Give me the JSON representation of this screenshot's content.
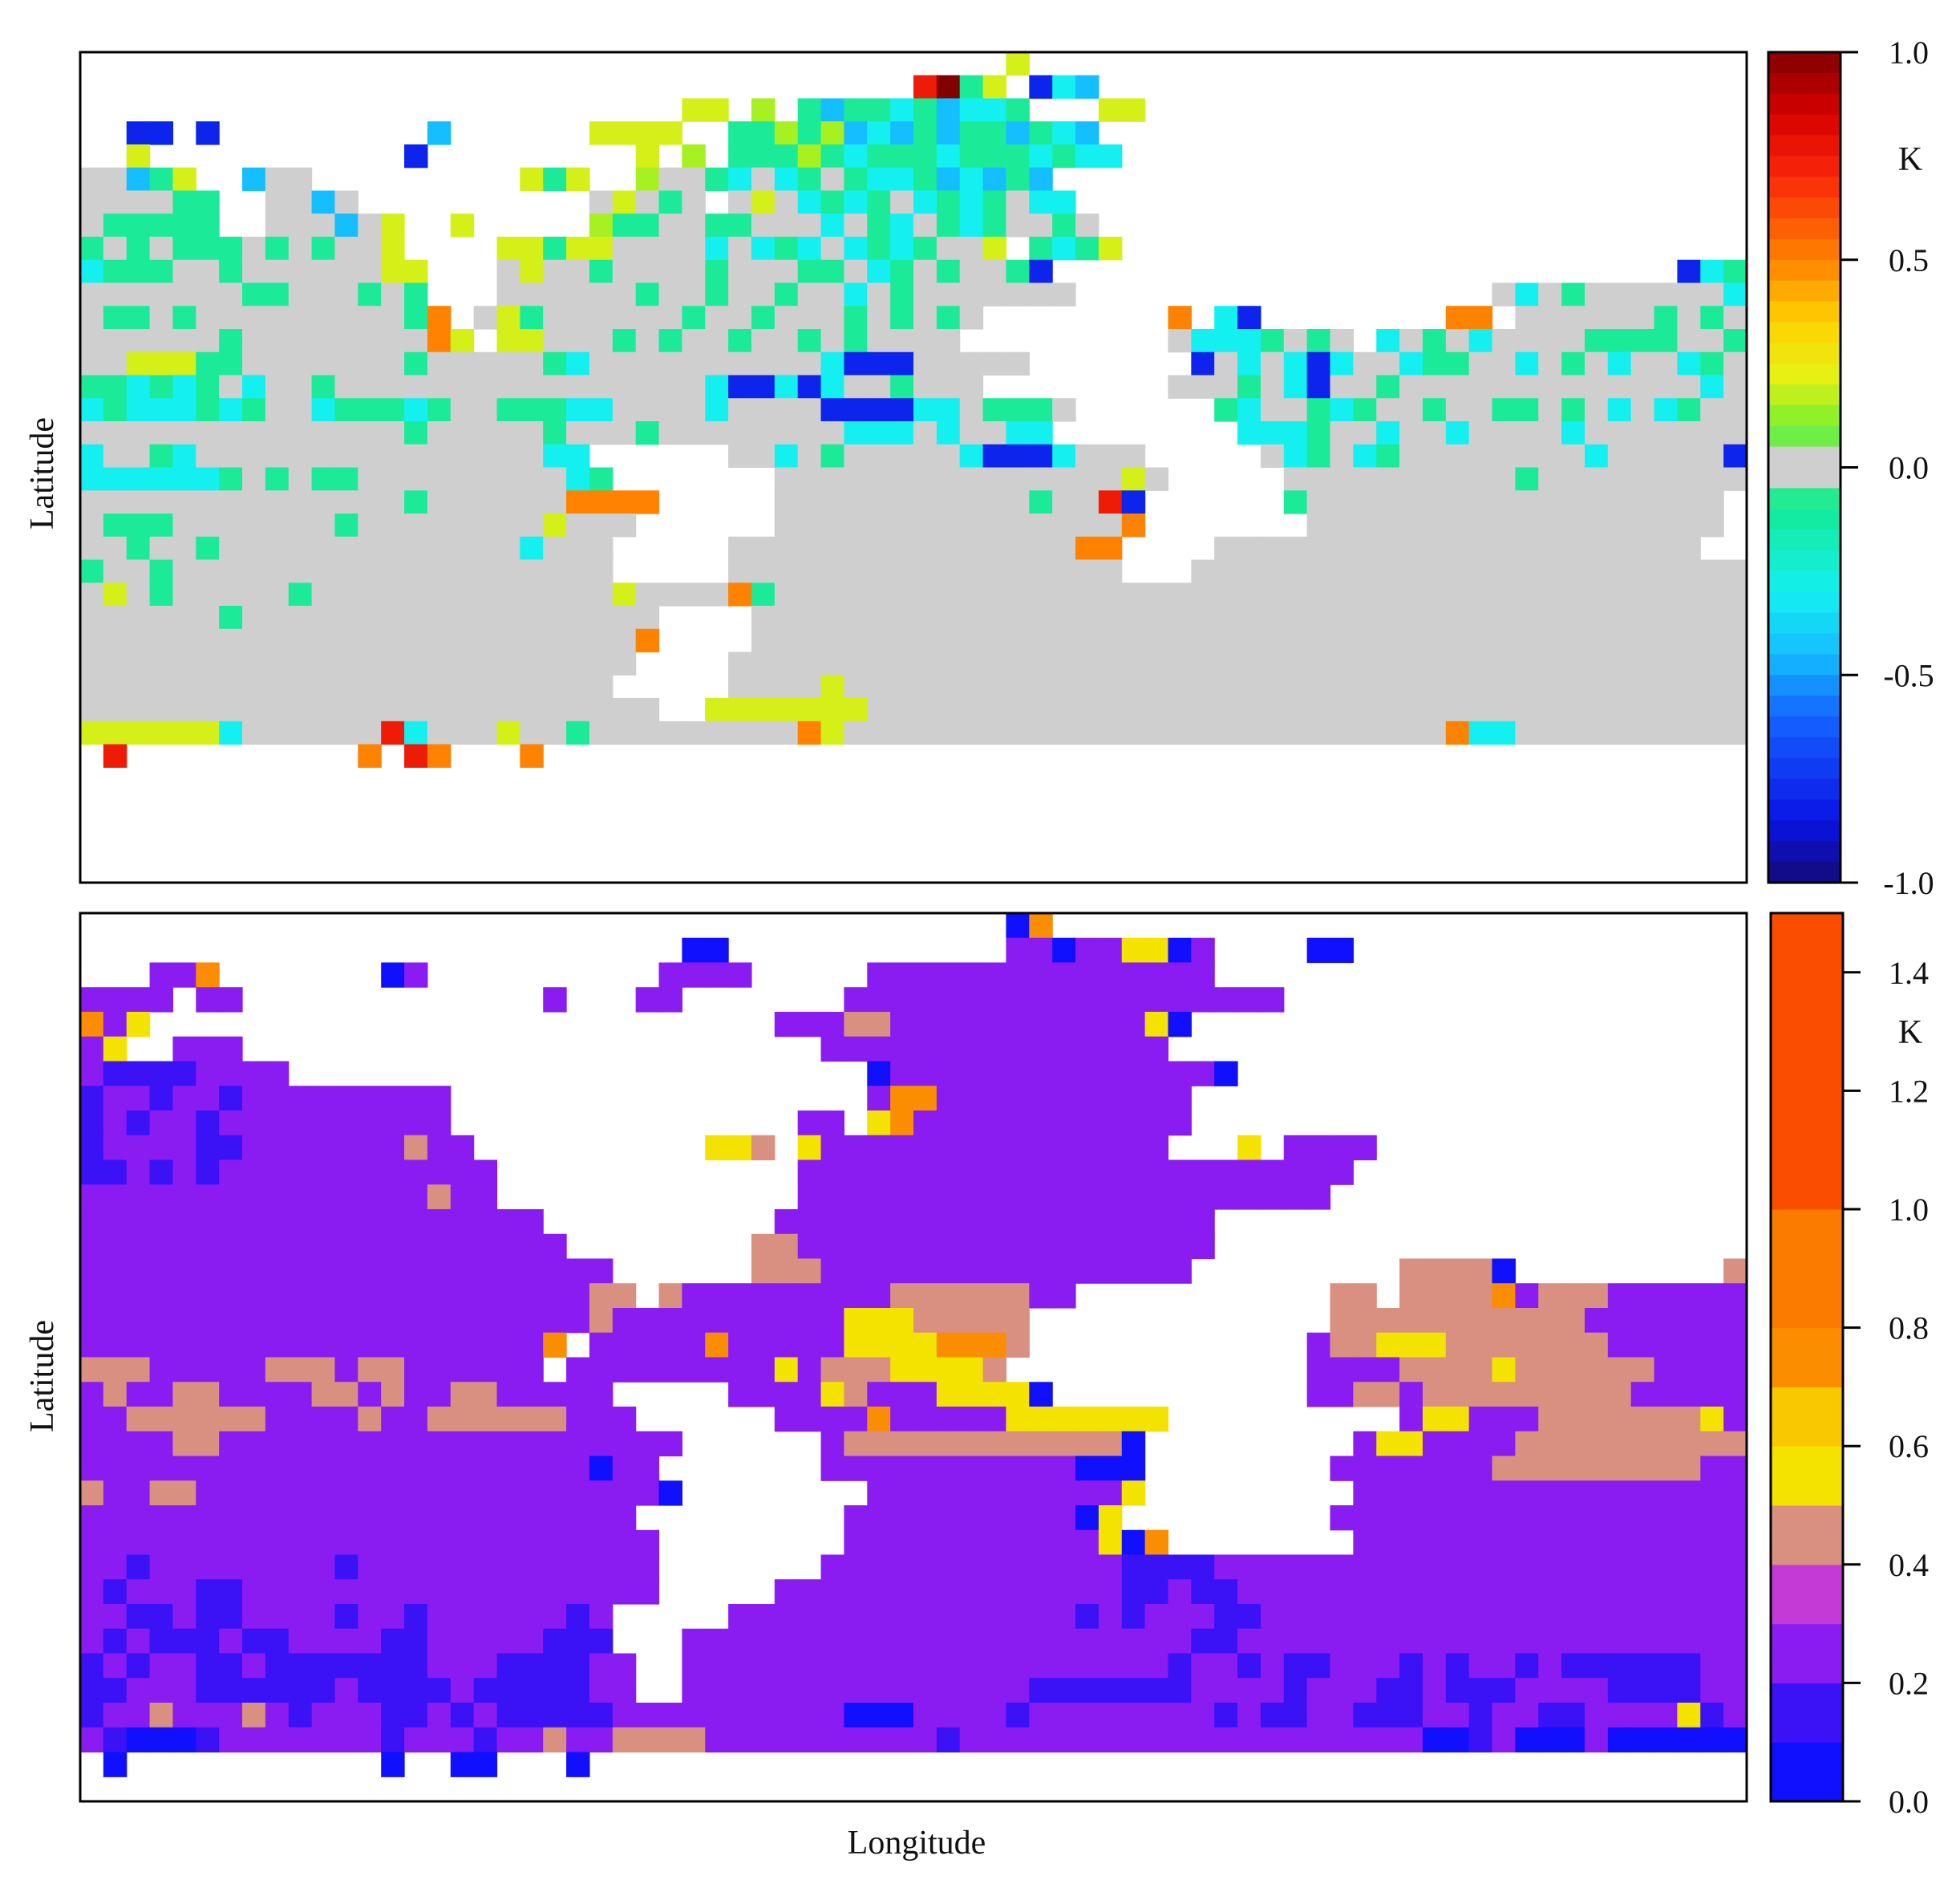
{
  "figure": {
    "x_axis_label": "Longitude",
    "panels": [
      {
        "y_axis_label": "Latitude",
        "colorbar_unit": "K",
        "colorbar_ticks": [
          "1.0",
          "0.5",
          "0.0",
          "-0.5",
          "-1.0"
        ]
      },
      {
        "y_axis_label": "Latitude",
        "colorbar_unit": "K",
        "colorbar_ticks": [
          "1.4",
          "1.2",
          "1.0",
          "0.8",
          "0.6",
          "0.4",
          "0.2",
          "0.0"
        ]
      }
    ]
  },
  "chart_data": [
    {
      "type": "heatmap",
      "title": "",
      "xlabel": "Longitude",
      "ylabel": "Latitude",
      "colorbar": {
        "unit": "K",
        "range": [
          -1.0,
          1.0
        ],
        "ticks": [
          1.0,
          0.5,
          0.0,
          -0.5,
          -1.0
        ],
        "palette": "rainbow (blue negative, grey near zero, red positive)",
        "near_zero_color": "#cfcfcf"
      },
      "grid_columns": 72,
      "grid_rows": 36,
      "missing_color": "#ffffff",
      "row_codes": [
        "........................................y.....................................",
        "....................................RZgy.BcW.........................................",
        "..........................yy.G.gWggcgWccg...yy..................................",
        "..BB.B.........W......yyyy..ggGgGWcWgWggWgcW.....................................",
        "..y...........B.........y.G.gggGgcgggcgggcgcc....................................",
        "NNWgy..WNN.........ygy..GNNgcNcgNgccgWcWgW.....................................OOcNgg",
        "NNNNgg..NNWN..........NyNgN.NyNcgcgNcgcgNcc.....................................gBNNN",
        "Nggggg..NNNWNy..y.....GggNNggNNNcNgcNgcgNNgN...................................cyyNgg",
        "gNgNgggNgNgNNy....yygyyNNNNcNcgcNcgcgNNy.gcgy.................................BggggNgN",
        "cgggNNgNNNNNNyy...NyNNgNNNNgNNNggNcgNgNNgB...........................Bcg.cNNNggNcgNN",
        "NNNNNNNggNNNgNg...NNNNNNgNNgNNgNNcNgNNNNNNN..................NcNgNNNNNNcNNNNNggg",
        "NggNgNNNNNNNNNgO.NygNNNNNNgNNgNNNgNgNgN........O.cB........OO.NNNNNNgNgNgNNNggggg",
        "NNNNNNgNNNNNNNNOy.yyNNNgNgNNgNNgNgNNNN.........NcccgNgN.cNgNcNNNNggggNNggNNggc",
        "NNyyyggNNNNNNNgNNNNNgcNNNNNNNNNNcBBBNNNNN.......BNcNcBcNNcggNNcNgNcNNcgNgNNgcc",
        "ggcgcgNcNNgNNNNNNNNNNNNNNNNcBBcBcNNgNNN........NNNgNcBNNgNNNNNNNNNNNNNcNcNggcg",
        "cgcccgcgNNcgggcgNNgggccNNNNcNNNNBBBBccNgggN......gcNNgcgNNgNNggNgNcNcgNNgcNcccc",
        "NNNNNNNNNNNNNNgNNNNNgNNNgNNNNNNNNcccNcNNcc........cccgNNcNNcNNNNcNNNNNNN...cNNN",
        "cNNgcNNNNNNNNNNNNNNNcc......NNcNgNNNNNcBBBcNNN.....NcgNcgNNNNNNNNcNNNNNBcN....yNNN",
        "ccccccgNgNggNNNNNNNNNcg.......NNNNNNNNNNNNNNNyN.....NNNNNNNNNNgNNNNNNNNN.....NNNNNc",
        "NNNNNNNNNNNNNNgNNNNNNOOOO.....NNNNNNNNNNNgNNRB......gNNNNNNNNNNNNNNNNNN.........gNNN",
        "NgggNNNNNNNgNNNNNNNNyNNN......NNNNNNNNNNNNNNNO.......NNNNNNNNNNNNNNNNNN.........NNNN",
        "NNgNNgNNNNNNNNNNNNNcNNN.....NNNNNNNNNNNNNNNOO....NNNNNNNNNNNNNNNNNNNNN.........NNNN",
        "gNNgNNNNNNNNNNNNNNNNNNN.....NNNNNNNNNNNNNNNNN...NNNNNNNNNNNNNNNNNNNNNNNN......BNNNNN",
        "NyNgNNNNNgNNNNNNNNNNNNNyNNNNOgNNNNNNNNNNNNNNNNNNNNNNNNNNNNNNNNNNNNNNNNNNNNNNNNNgNN",
        "NNNNNNgNNNNNNNNNNNNNNNNNN....NNNNNNNNNNNNNNNNNNNNNNNNNNNNNNNNNNNNNNNNNNNNNNNgNNN",
        "NNNNNNNNNNNNNNNNNNNNNNNNO....NNNNNNNNNNNNNNNNNNNNNNNNNNNNNNNNNNNNNNNNNNNNNNNNNNN",
        "NNNNNNNNNNNNNNNNNNNNNNNN....NNNNNNNNNNNNNNNNNNNNNNNNNNNNNNNNNNNNNNNNNNNNNNNNNNNN",
        "NNNNNNNNNNNNNNNNNNNNNNN.....NNNNyNNNNNNNNNNNNNNNNNNNNNNNNNNNNNNNNNNNNNNNNNNNNNNN",
        "NNNNNNNNNNNNNNNNNNNNNNNNN..yyyyyyyNNNNNNNNNNNNNNNNNNNNNNNNNNNNNNNNNNNNNNNNNNNNNN",
        "yyyyyycNNNNNNRcNNNyNNgNNNNNNNNNOyNNNNNNNNNNNNNNNNNNNNNNNNNNOccNNNNNNNNNNNNNNNNNN",
        ".R..........O.RO...O...........................................................",
        "................................................................................"
      ],
      "row_code_legend": {
        ".": "no data",
        "N": "0.0 (near zero)",
        "g": "-0.1",
        "c": "-0.3",
        "W": "-0.45",
        "B": "-0.8",
        "y": "0.2",
        "G": "0.15",
        "O": "0.5",
        "R": "0.75",
        "Z": "1.0"
      }
    },
    {
      "type": "heatmap",
      "title": "",
      "xlabel": "Longitude",
      "ylabel": "Latitude",
      "colorbar": {
        "unit": "K",
        "range": [
          0.0,
          1.5
        ],
        "ticks": [
          1.4,
          1.2,
          1.0,
          0.8,
          0.6,
          0.4,
          0.2,
          0.0
        ],
        "bins": [
          {
            "from": 0.0,
            "to": 0.1,
            "color": "#1010ff"
          },
          {
            "from": 0.1,
            "to": 0.2,
            "color": "#3a12f5"
          },
          {
            "from": 0.2,
            "to": 0.3,
            "color": "#8a1cf2"
          },
          {
            "from": 0.3,
            "to": 0.4,
            "color": "#c33ad6"
          },
          {
            "from": 0.4,
            "to": 0.5,
            "color": "#d99080"
          },
          {
            "from": 0.5,
            "to": 0.6,
            "color": "#f4e200"
          },
          {
            "from": 0.6,
            "to": 0.7,
            "color": "#f8c800"
          },
          {
            "from": 0.7,
            "to": 0.8,
            "color": "#fb8e00"
          },
          {
            "from": 0.8,
            "to": 1.0,
            "color": "#fb7a00"
          },
          {
            "from": 1.0,
            "to": 1.5,
            "color": "#fb4d00"
          }
        ]
      },
      "grid_columns": 72,
      "grid_rows": 36,
      "missing_color": "#ffffff",
      "row_codes": [
        "........................................BO...................................",
        "..........................BB............PPBPPyyBP....BB.........................",
        "...PPO.......BP..........PPPP.....PPPPPPPPPPPPPPP................................",
        "PPPP.PP.............P...PP.......PPPPPPPPPPPPPPPPPPP............................",
        "OPy...........................PPPCCPPPPPPPPPPPyB.....................................",
        "Py..PPP.........................PPPPPPPPPPPPPPP...................................PPPP",
        "PVVVVPPPP.........................BPPPPPPPPPPPPPPB.............................BPPBVP",
        "VPPVPPVPPPPPPPPP..................POOPPPPPPPPPPP..............................BPPPPPP",
        "VPVPPVPPPPPPPPPP...............PP.yOPPPPPPPPPPPP.................................OyPPPV",
        "VPPPPVVPPPPPPPCPP..........yyC.yPPPPPPPPPPPPPPP...y.PPPP......................PPPPPPPP",
        "VVPVPVPPPPPPPPPPPP.............PPPPPPPPPPPPPPPPPPPPPPPP......................BOPPPPPPP",
        "PPPPPPPPPPPPPPPCPP.............PPPPPPPPPPPPPPPPPPPPPPP.......................BPPPPPPP",
        "PPPPPPPPPPPPPPPPPPPP..........PPPPPPPPPPPPPPPPPPP.........................PyPPPPPPPPP",
        "PPPPPPPPPPPPPPPPPPPPP........CCPPPPPPPPPPPPPPPPPP........................CPPPCPPPPP",
        "PPPPPPPPPPPPPPPPPPPPPPP......CCCPPPPPPPPPPPPPPPP.........CCCCB.........CCPPPPPPPPPP",
        "PPPPPPPPPPPPPPPPPPPPPPCC.CPPPPPPPPPCCCCCCPP...........CC.CCCCOPCCCPPPPPPPPPPPPPPPP",
        "PPPPPPPPPPPPPPPPPPPPPPCPPPPPPPPPPyyyCCCCC.............CCCCCCCCCCCPPPPPPPPPPPPPPPPP",
        "PPPPPPPPPPPPPPPPPPPPO.PPPPPOPPPPPyyyyOOOC............PCCyyyCCCCCCCPPPPPPPPPPPPPPPPP",
        "CCCPPPPPCCCPCCPPPPPP.PPPPPPPPPyPCCCyyyyC.............PPPPCCCCyCCCCCCPPPPPPPPPPPPPPP",
        "PCPPCCPPPPCCPCPPCCPPPPP.....PPPPyCPPPyyyyB...........PPCCPCCCCCCCCCPPPPPPPPPPPPP",
        "PPCCCCCCPPPPCPPCCCCCCPPP......PPPPOPPPPPyyyyyyy..........PyyPPPCCCCCCCyPPCCCPPPPPPPP",
        "PPPPCCPPPPPPPPPPPPPPPPPPPP......PCCCCCCCCCCCCB.........PyyPPPPCCCCCCCCCCyPP..B.PPPPPPP",
        "PPPPPPPPPPPPPPPPPPPPPPBPP.......PPPPPPPPPPPBBB........PPPPPPPCCCCCCCCCPPPBBB...yPPPPPP",
        "CPPCCPPPPPPPPPPPPPPPPPPPPB........PPPPPPPPPPPy.........PPPPPPPPPPPPPPPPPPPPCCCCPPPPP",
        "PPPPPPPPPPPPPPPPPPPPPPPP.........PPPPPPPPPPBy.........PPPPPPPPPPPPPPPPPPPPPPB...PPPPP",
        "PPPPPPPPPPPPPPPPPPPPPPPPP........PPPPPPPPPPPyBO........PPPPPPPPPPPPPPPPPPPPPP.....PPPP",
        "PPVPPPPPPPPVPPPPPPPPPPPPP.......PPPPPPPPPPPPPVVVVPPPPPPPPPPPPPPPPPPPPPPPPPPPPPPPPPPP",
        "PVPPPVVPPPPPPPPPPPPPPPPPP.....PPPPPPPPPPPPPPPVVPVVPPPPPPPPPPPPPPPPPPPPPPPPPPPPPPPPP",
        "PPVVPVVPPPPVPPVPPPPPPVP.....PPPPPPPPPPPPPPPVPVPPPVVPPPPPPPPPPPPPPPPPPPPPPPPPPPPPPP",
        "PVPVVVPVVPPPPVVPPPPPVVV...PPPPPPPPPPPPPPPPPPPPPPVVPPPPPPPPPPPPPPPPPPPPPPPPPPPPPPP",
        "VPVPPVVPVVVVVVVPPPVVVVPP..PPPPPPPPPPPPPPPPPPPPPVPPVPVVPPPVPVPPVPVVVVVVPPPPPVPPPPPP",
        "VVPPPVVVVVVPVVVVPVVVVVPP..PPPPPPPPPPPPPPPVVVVVVVPPPPVPPPVVPVVVPPPPVVVVPPVVVVVVVPPP",
        "VPPCPPPCPVPPPVVPVPVVVVVPPPPPPPPPPBBBPPPPVPPPPPPPPVPVVPPVVVPPVPPVVPPPPyVPPPVPPPPPPP",
        "PVBBBVPPPPPPPVPPPVPPCPPCCCCPPPPPPPPPPVPPPPPPPPPPPPPPPPPPPPBBVPBBBPBBBBBBBPPPOPCP",
        ".B...........B..BB...B....................................................................C"
      ],
      "row_code_legend": {
        ".": "no data",
        "B": "0.05",
        "V": "0.15",
        "P": "0.25",
        "C": "0.45",
        "y": "0.55",
        "O": "0.75"
      }
    }
  ]
}
